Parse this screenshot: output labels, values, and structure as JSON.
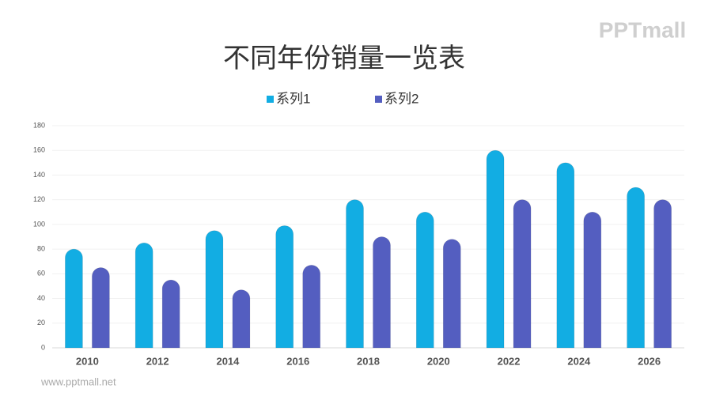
{
  "chart_data": {
    "type": "bar",
    "title": "不同年份销量一览表",
    "categories": [
      "2010",
      "2012",
      "2014",
      "2016",
      "2018",
      "2020",
      "2022",
      "2024",
      "2026"
    ],
    "series": [
      {
        "name": "系列1",
        "color": "#12ade3",
        "values": [
          80,
          85,
          95,
          99,
          120,
          110,
          160,
          150,
          130
        ]
      },
      {
        "name": "系列2",
        "color": "#545ec0",
        "values": [
          65,
          55,
          47,
          67,
          90,
          88,
          120,
          110,
          120
        ]
      }
    ],
    "ylim": [
      0,
      180
    ],
    "yticks": [
      0,
      20,
      40,
      60,
      80,
      100,
      120,
      140,
      160,
      180
    ],
    "grid": true,
    "legend": "top"
  },
  "watermark": "PPTmall",
  "footer": "www.pptmall.net"
}
